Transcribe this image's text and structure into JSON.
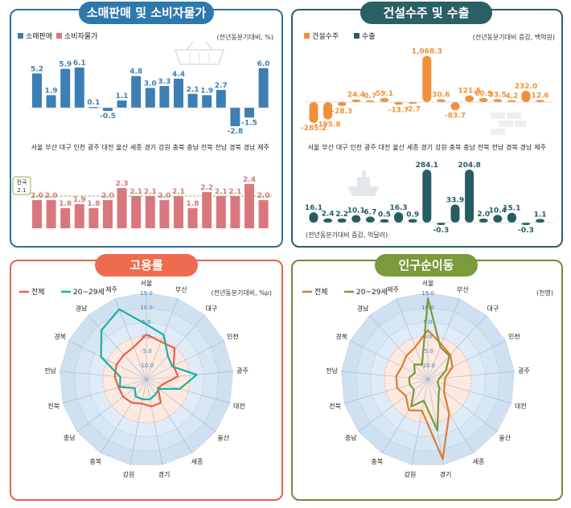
{
  "panels": {
    "retail": {
      "title": "소매판매 및 소비자물가"
    },
    "construction": {
      "title": "건설수주 및 수출"
    },
    "employment": {
      "title": "고용률"
    },
    "migration": {
      "title": "인구순이동"
    }
  },
  "chart_data": [
    {
      "id": "retail_sales",
      "type": "bar",
      "categories": [
        "서울",
        "부산",
        "대구",
        "인천",
        "광주",
        "대전",
        "울산",
        "세종",
        "경기",
        "강원",
        "충북",
        "충남",
        "전북",
        "전남",
        "경북",
        "경남",
        "제주"
      ],
      "series": [
        {
          "name": "소매판매",
          "values": [
            5.2,
            1.9,
            5.9,
            6.1,
            0.1,
            -0.5,
            1.1,
            4.8,
            3.0,
            3.3,
            4.4,
            2.1,
            1.9,
            2.7,
            -2.8,
            -1.5,
            6.0
          ],
          "color": "#3d7fb3"
        }
      ],
      "unit_note": "(전년동분기대비, %)"
    },
    {
      "id": "consumer_prices",
      "type": "bar",
      "categories": [
        "서울",
        "부산",
        "대구",
        "인천",
        "광주",
        "대전",
        "울산",
        "세종",
        "경기",
        "강원",
        "충북",
        "충남",
        "전북",
        "전남",
        "경북",
        "경남",
        "제주"
      ],
      "series": [
        {
          "name": "소비자물가",
          "values": [
            2.0,
            2.0,
            1.8,
            1.9,
            1.8,
            2.0,
            2.3,
            2.1,
            2.1,
            2.0,
            2.1,
            1.8,
            2.2,
            2.1,
            2.1,
            2.4,
            2.0
          ],
          "color": "#d9777f"
        }
      ],
      "reference": {
        "label": "전국",
        "value": "2.1"
      }
    },
    {
      "id": "construction_orders",
      "type": "bar",
      "categories": [
        "서울",
        "부산",
        "대구",
        "인천",
        "광주",
        "대전",
        "울산",
        "세종",
        "경기",
        "강원",
        "충북",
        "충남",
        "전북",
        "전남",
        "경북",
        "경남",
        "제주"
      ],
      "series": [
        {
          "name": "건설수주",
          "values": [
            -285.2,
            -195.8,
            -28.3,
            24.4,
            0.7,
            59.1,
            -13.7,
            -2.7,
            1068.3,
            30.6,
            -83.7,
            121.5,
            60.9,
            33.5,
            4.2,
            232.0,
            12.6
          ],
          "color": "#f0913a"
        }
      ],
      "unit_note": "(전년동분기대비 증감, 백억원)"
    },
    {
      "id": "exports",
      "type": "bar",
      "categories": [
        "서울",
        "부산",
        "대구",
        "인천",
        "광주",
        "대전",
        "울산",
        "세종",
        "경기",
        "강원",
        "충북",
        "충남",
        "전북",
        "전남",
        "경북",
        "경남",
        "제주"
      ],
      "series": [
        {
          "name": "수출",
          "values": [
            16.1,
            2.4,
            2.2,
            10.1,
            6.7,
            0.5,
            16.3,
            0.9,
            284.1,
            -0.3,
            33.9,
            204.8,
            2.0,
            10.4,
            15.1,
            -0.3,
            1.1
          ],
          "color": "#255d63"
        }
      ],
      "unit_note": "(전년동분기대비 증감, 억달러)"
    },
    {
      "id": "employment_rate",
      "type": "radar",
      "axes": [
        "서울",
        "부산",
        "대구",
        "인천",
        "광주",
        "대전",
        "울산",
        "세종",
        "경기",
        "강원",
        "충북",
        "충남",
        "전북",
        "전남",
        "경북",
        "경남",
        "제주"
      ],
      "ticks": [
        "15.0",
        "10.0",
        "5.0",
        "0.0",
        "-5.0",
        "-10.0"
      ],
      "rmin": -15,
      "rmax": 15,
      "series": [
        {
          "name": "전체",
          "values": [
            0.5,
            -1.0,
            -0.5,
            -4.5,
            -4.0,
            -9.0,
            -10.0,
            -5.5,
            -5.5,
            -6.5,
            -5.5,
            -5.0,
            -5.0,
            -4.0,
            -3.5,
            -3.5,
            -3.0
          ],
          "color": "#e4634a"
        },
        {
          "name": "20~29세",
          "values": [
            4.0,
            1.5,
            -4.0,
            -5.0,
            2.5,
            -3.0,
            -9.5,
            -9.0,
            -8.0,
            -8.0,
            -8.0,
            -10.0,
            -5.5,
            -6.0,
            2.5,
            8.0,
            11.0
          ],
          "color": "#1aaea3"
        }
      ],
      "unit_note": "(전년동분기대비, %p)"
    },
    {
      "id": "net_migration",
      "type": "radar",
      "axes": [
        "서울",
        "부산",
        "대구",
        "인천",
        "광주",
        "대전",
        "울산",
        "세종",
        "경기",
        "강원",
        "충북",
        "충남",
        "전북",
        "전남",
        "경북",
        "경남",
        "제주"
      ],
      "ticks": [
        "15.0",
        "10.0",
        "5.0",
        "0.0",
        "-5.0",
        "-10.0"
      ],
      "rmin": -15,
      "rmax": 15,
      "series": [
        {
          "name": "전체",
          "values": [
            2.0,
            -2.0,
            -3.5,
            -5.5,
            -9.0,
            -9.0,
            -8.0,
            -1.0,
            13.0,
            -4.0,
            -2.5,
            -5.5,
            -4.0,
            -4.0,
            -5.0,
            -4.0,
            -3.0
          ],
          "color": "#e07b2e"
        },
        {
          "name": "20~29세",
          "values": [
            13.0,
            -3.0,
            -4.0,
            -8.0,
            -11.0,
            -11.5,
            -10.0,
            -8.0,
            3.0,
            -7.5,
            -4.0,
            -9.0,
            -8.5,
            -8.5,
            -10.0,
            -8.0,
            -9.5
          ],
          "color": "#7a9a3c"
        }
      ],
      "unit_note": "(천명)"
    }
  ]
}
